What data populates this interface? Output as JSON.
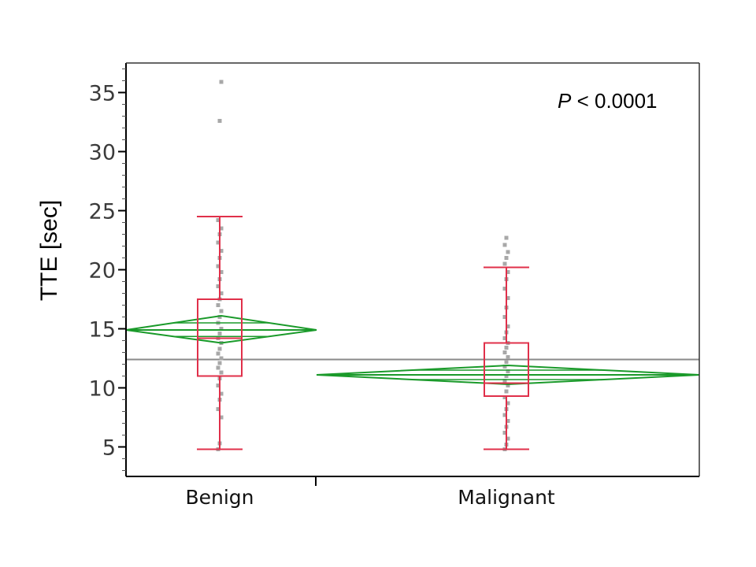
{
  "chart_data": {
    "type": "box",
    "title": "",
    "xlabel": "",
    "ylabel": "TTE [sec]",
    "ylim": [
      2.5,
      37.5
    ],
    "yticks": [
      5,
      10,
      15,
      20,
      25,
      30,
      35
    ],
    "ytick_labels": [
      "5",
      "10",
      "15",
      "20",
      "25",
      "30",
      "35"
    ],
    "categories": [
      "Benign",
      "Malignant"
    ],
    "annotation": {
      "italic": "P",
      "rest": " < 0.0001"
    },
    "grand_mean": 12.4,
    "groups": [
      {
        "name": "Benign",
        "whisker_low": 4.8,
        "q1": 11.0,
        "median": 14.2,
        "q3": 17.5,
        "whisker_high": 24.5,
        "mean": 14.9,
        "ci_low": 13.8,
        "ci_high": 16.1,
        "points": [
          4.8,
          5.3,
          7.5,
          8.2,
          9.0,
          9.5,
          10.2,
          10.8,
          11.3,
          11.7,
          12.1,
          12.5,
          12.9,
          13.3,
          13.8,
          14.2,
          14.6,
          15.0,
          15.5,
          16.0,
          16.5,
          17.0,
          17.5,
          18.0,
          18.6,
          19.2,
          19.8,
          20.3,
          21.0,
          21.6,
          22.3,
          23.0,
          23.5,
          24.2,
          32.6,
          35.9
        ]
      },
      {
        "name": "Malignant",
        "whisker_low": 4.8,
        "q1": 9.3,
        "median": 10.4,
        "q3": 13.8,
        "whisker_high": 20.2,
        "mean": 11.1,
        "ci_low": 10.3,
        "ci_high": 11.9,
        "points": [
          4.8,
          5.2,
          5.7,
          6.2,
          6.7,
          7.2,
          7.7,
          8.2,
          8.7,
          9.2,
          9.7,
          10.2,
          10.6,
          11.0,
          11.4,
          11.8,
          12.2,
          12.6,
          13.0,
          13.4,
          13.8,
          14.2,
          14.7,
          15.2,
          16.0,
          16.8,
          17.6,
          18.4,
          19.2,
          19.8,
          20.5,
          21.0,
          21.5,
          22.1,
          22.7
        ]
      }
    ],
    "colors": {
      "box": "#e0304a",
      "diamond": "#1a9a2a",
      "grand_mean_line": "#8a8a8a",
      "points": "#a8a8a8",
      "axis": "#000000"
    }
  }
}
